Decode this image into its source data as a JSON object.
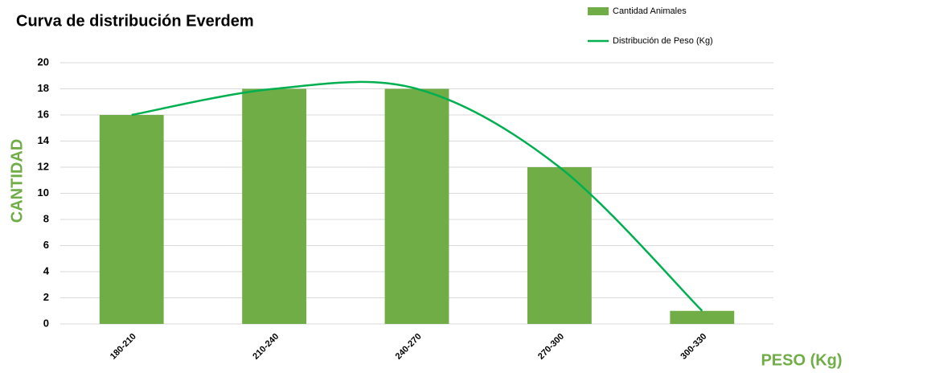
{
  "chart_data": {
    "type": "bar",
    "title": "Curva de distribución Everdem",
    "x_label": "PESO (Kg)",
    "y_label": "CANTIDAD",
    "categories": [
      "180-210",
      "210-240",
      "240-270",
      "270-300",
      "300-330"
    ],
    "series": [
      {
        "name": "Cantidad Animales",
        "color": "#70ad47",
        "values": [
          16,
          18,
          18,
          12,
          1
        ]
      },
      {
        "name": "Distribución de Peso (Kg)",
        "color": "#00b050",
        "type": "line",
        "smooth": true,
        "values": [
          16,
          18,
          18,
          12,
          1
        ]
      }
    ],
    "ylim": [
      0,
      20
    ],
    "yticks": [
      0,
      2,
      4,
      6,
      8,
      10,
      12,
      14,
      16,
      18,
      20
    ],
    "grid": true,
    "legend": "top-right"
  }
}
